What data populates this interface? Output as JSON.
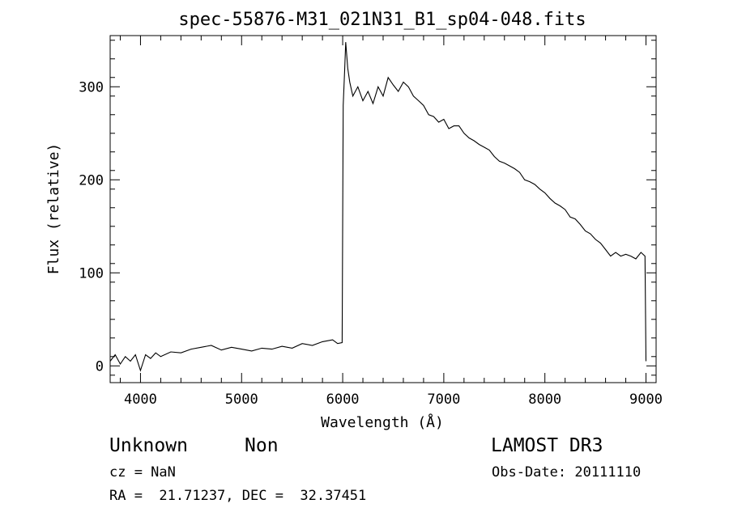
{
  "chart_data": {
    "type": "line",
    "title": "spec-55876-M31_021N31_B1_sp04-048.fits",
    "xlabel": "Wavelength (Å)",
    "ylabel": "Flux (relative)",
    "xlim": [
      3700,
      9100
    ],
    "ylim": [
      -18,
      355
    ],
    "xticks": [
      4000,
      5000,
      6000,
      7000,
      8000,
      9000
    ],
    "yticks": [
      0,
      100,
      200,
      300
    ],
    "grid": false,
    "series": [
      {
        "x": [
          3700,
          3750,
          3800,
          3850,
          3900,
          3950,
          4000,
          4050,
          4100,
          4150,
          4200,
          4300,
          4400,
          4500,
          4600,
          4700,
          4800,
          4900,
          5000,
          5100,
          5200,
          5300,
          5400,
          5500,
          5600,
          5700,
          5800,
          5900,
          5950,
          5995,
          6005,
          6020,
          6030,
          6050,
          6070,
          6100,
          6150,
          6200,
          6250,
          6300,
          6350,
          6400,
          6450,
          6500,
          6550,
          6600,
          6650,
          6700,
          6750,
          6800,
          6850,
          6900,
          6950,
          7000,
          7050,
          7100,
          7150,
          7200,
          7250,
          7300,
          7350,
          7400,
          7450,
          7500,
          7550,
          7600,
          7650,
          7700,
          7750,
          7800,
          7850,
          7900,
          7950,
          8000,
          8050,
          8100,
          8150,
          8200,
          8250,
          8300,
          8350,
          8400,
          8450,
          8500,
          8550,
          8600,
          8650,
          8700,
          8750,
          8800,
          8850,
          8900,
          8950,
          8990,
          9000
        ],
        "y": [
          5,
          12,
          2,
          10,
          5,
          12,
          -5,
          12,
          8,
          14,
          10,
          15,
          14,
          18,
          20,
          22,
          17,
          20,
          18,
          16,
          19,
          18,
          21,
          19,
          24,
          22,
          26,
          28,
          24,
          25,
          280,
          320,
          348,
          320,
          305,
          290,
          300,
          285,
          295,
          282,
          300,
          290,
          310,
          302,
          295,
          305,
          300,
          290,
          285,
          280,
          270,
          268,
          262,
          265,
          255,
          258,
          258,
          250,
          245,
          242,
          238,
          235,
          232,
          225,
          220,
          218,
          215,
          212,
          208,
          200,
          198,
          195,
          190,
          186,
          180,
          175,
          172,
          168,
          160,
          158,
          152,
          145,
          142,
          136,
          132,
          125,
          118,
          122,
          118,
          120,
          118,
          115,
          122,
          118,
          5
        ]
      }
    ]
  },
  "footer": {
    "object_class": "Unknown",
    "subclass": "Non",
    "survey": "LAMOST DR3",
    "redshift": "cz = NaN",
    "obs_date": "Obs-Date: 20111110",
    "coords": "RA =  21.71237, DEC =  32.37451"
  }
}
